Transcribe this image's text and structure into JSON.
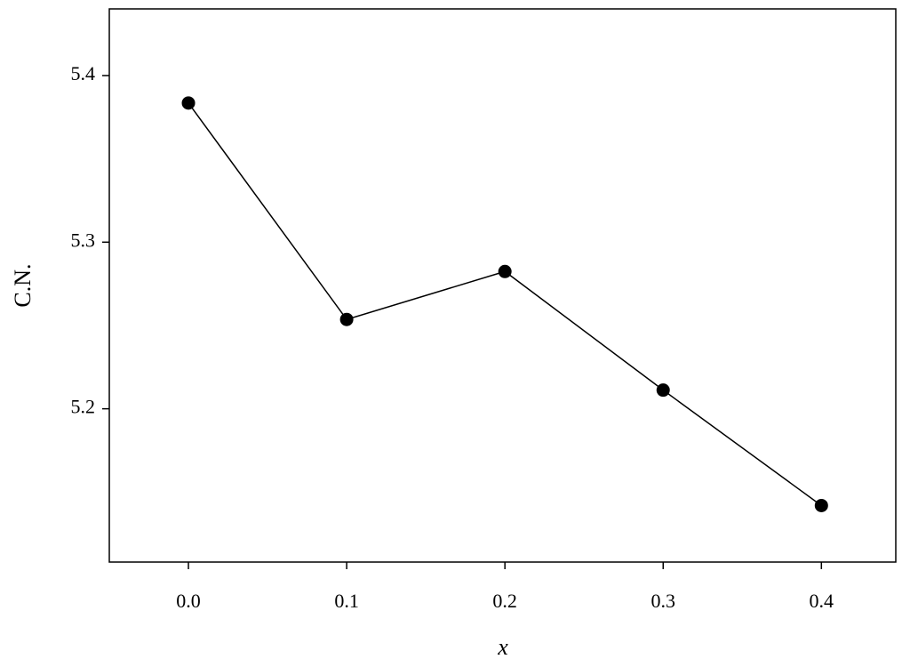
{
  "chart_data": {
    "type": "line",
    "xlabel": "x",
    "ylabel": "C.N.",
    "x": [
      0.0,
      0.1,
      0.2,
      0.3,
      0.4
    ],
    "series": [
      {
        "color": "#000000",
        "values": [
          5.3835,
          5.2536,
          5.2824,
          5.2112,
          5.1419
        ]
      }
    ],
    "xlim": [
      -0.05,
      0.447
    ],
    "ylim": [
      5.108,
      5.44
    ],
    "xticks": [
      {
        "value": 0,
        "label": "0.0"
      },
      0.1,
      0.2,
      0.3,
      0.4
    ],
    "yticks": [
      5.2,
      5.3,
      5.4
    ]
  }
}
